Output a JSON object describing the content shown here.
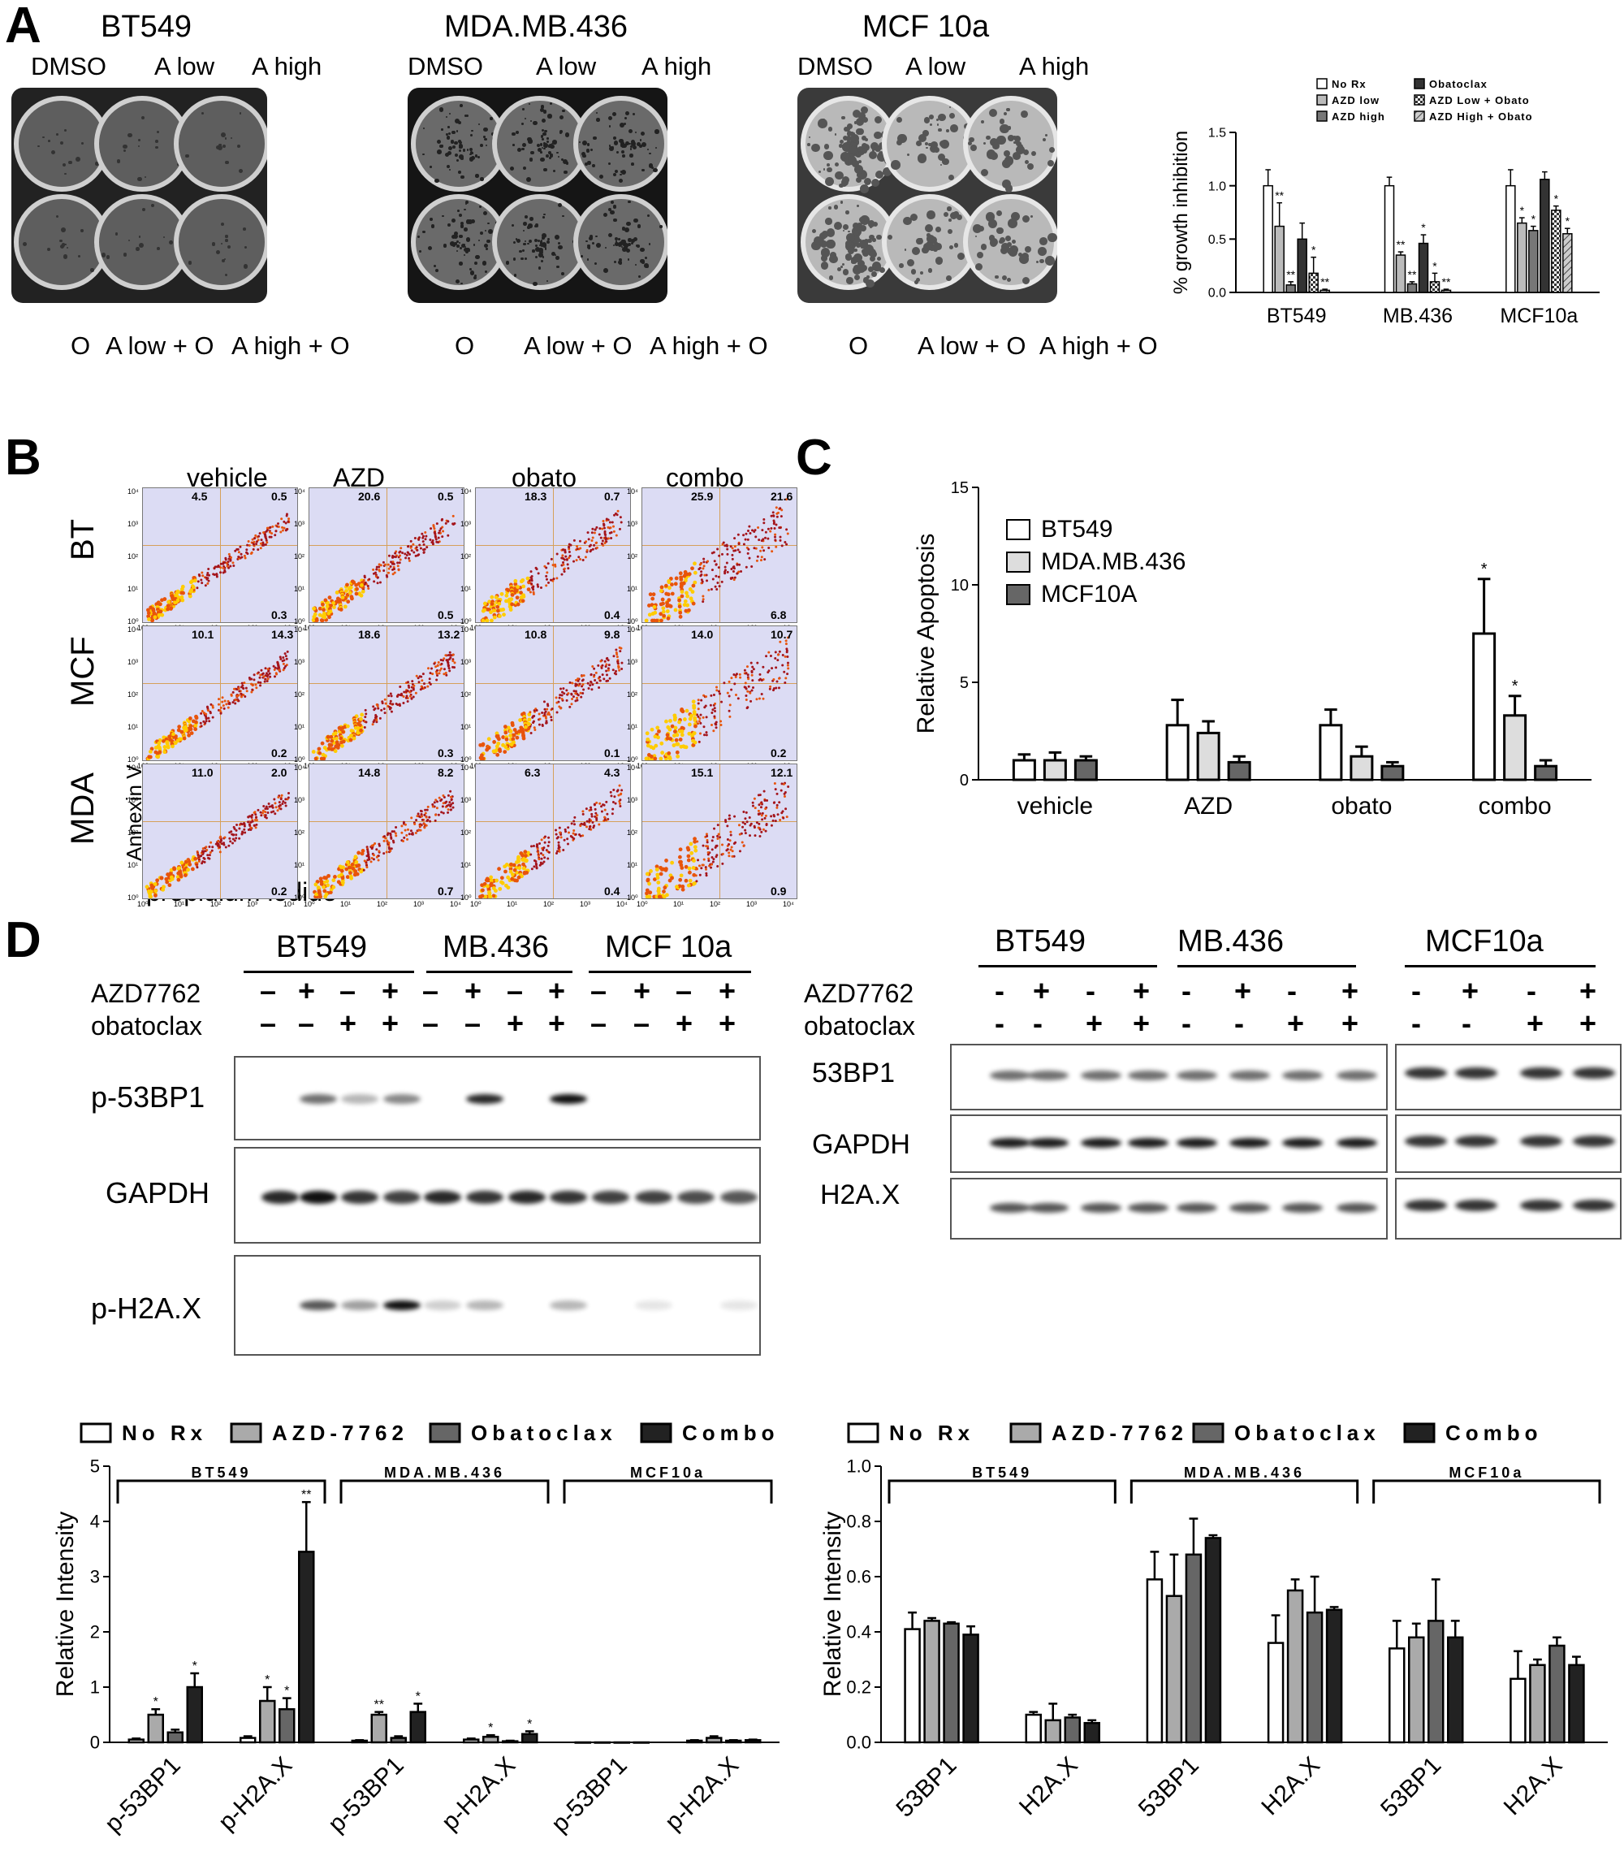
{
  "panels": {
    "A": "A",
    "B": "B",
    "C": "C",
    "D": "D"
  },
  "panelA": {
    "plates": [
      {
        "title": "BT549",
        "top_labels": [
          "DMSO",
          "A low",
          "A high"
        ],
        "bottom_labels": [
          "O",
          "A low + O",
          "A high + O"
        ]
      },
      {
        "title": "MDA.MB.436",
        "top_labels": [
          "DMSO",
          "A low",
          "A high"
        ],
        "bottom_labels": [
          "O",
          "A low + O",
          "A high + O"
        ]
      },
      {
        "title": "MCF 10a",
        "top_labels": [
          "DMSO",
          "A low",
          "A high"
        ],
        "bottom_labels": [
          "O",
          "A low + O",
          "A high + O"
        ]
      }
    ]
  },
  "panelB": {
    "columns": [
      "vehicle",
      "AZD",
      "obato",
      "combo"
    ],
    "rows": [
      "BT",
      "MCF",
      "MDA"
    ],
    "ylabel": "Annexin V",
    "xlabel": "propidium iodide",
    "tick_labels": [
      "10⁰",
      "10¹",
      "10²",
      "10³",
      "10⁴"
    ],
    "quadrant_values": [
      [
        [
          "4.5",
          "0.5",
          "0.3"
        ],
        [
          "20.6",
          "0.5",
          "0.5"
        ],
        [
          "18.3",
          "0.7",
          "0.4"
        ],
        [
          "25.9",
          "21.6",
          "6.8"
        ]
      ],
      [
        [
          "10.1",
          "14.3",
          "0.2"
        ],
        [
          "18.6",
          "13.2",
          "0.3"
        ],
        [
          "10.8",
          "9.8",
          "0.1"
        ],
        [
          "14.0",
          "10.7",
          "0.2"
        ]
      ],
      [
        [
          "11.0",
          "2.0",
          "0.2"
        ],
        [
          "14.8",
          "8.2",
          "0.7"
        ],
        [
          "6.3",
          "4.3",
          "0.4"
        ],
        [
          "15.1",
          "12.1",
          "0.9"
        ]
      ]
    ]
  },
  "panelD": {
    "left_blot": {
      "groups": [
        "BT549",
        "MB.436",
        "MCF 10a"
      ],
      "rows": [
        "AZD7762",
        "obatoclax"
      ],
      "azd": [
        "–",
        "+",
        "–",
        "+",
        "–",
        "+",
        "–",
        "+",
        "–",
        "+",
        "–",
        "+"
      ],
      "obato": [
        "–",
        "–",
        "+",
        "+",
        "–",
        "–",
        "+",
        "+",
        "–",
        "–",
        "+",
        "+"
      ],
      "bands": [
        "p-53BP1",
        "GAPDH",
        "p-H2A.X"
      ]
    },
    "right_blot": {
      "groups": [
        "BT549",
        "MB.436",
        "MCF10a"
      ],
      "rows": [
        "AZD7762",
        "obatoclax"
      ],
      "azd": [
        "-",
        "+",
        "-",
        "+",
        "-",
        "+",
        "-",
        "+",
        "-",
        "+",
        "-",
        "+"
      ],
      "obato": [
        "-",
        "-",
        "+",
        "+",
        "-",
        "-",
        "+",
        "+",
        "-",
        "-",
        "+",
        "+"
      ],
      "bands": [
        "53BP1",
        "GAPDH",
        "H2A.X"
      ]
    }
  },
  "chart_data": [
    {
      "type": "bar",
      "panel": "A",
      "ylabel": "% growth inhibition",
      "categories": [
        "BT549",
        "MB.436",
        "MCF10a"
      ],
      "ylim": [
        0,
        1.5
      ],
      "yticks": [
        "0.0",
        "0.5",
        "1.0",
        "1.5"
      ],
      "series": [
        {
          "name": "No Rx",
          "values": [
            1.0,
            1.0,
            1.0
          ],
          "err": [
            0.15,
            0.08,
            0.15
          ]
        },
        {
          "name": "AZD low",
          "values": [
            0.62,
            0.35,
            0.65
          ],
          "err": [
            0.22,
            0.03,
            0.05
          ]
        },
        {
          "name": "AZD high",
          "values": [
            0.07,
            0.08,
            0.58
          ],
          "err": [
            0.03,
            0.02,
            0.04
          ]
        },
        {
          "name": "Obatoclax",
          "values": [
            0.5,
            0.46,
            1.06
          ],
          "err": [
            0.15,
            0.08,
            0.07
          ]
        },
        {
          "name": "AZD Low + Obato",
          "values": [
            0.18,
            0.1,
            0.77
          ],
          "err": [
            0.15,
            0.08,
            0.04
          ]
        },
        {
          "name": "AZD High + Obato",
          "values": [
            0.02,
            0.02,
            0.55
          ],
          "err": [
            0.01,
            0.01,
            0.05
          ]
        }
      ],
      "annotations": [
        [
          "",
          "**",
          "**",
          "",
          "*",
          "**"
        ],
        [
          "",
          "**",
          "**",
          "*",
          "*",
          "**"
        ],
        [
          "",
          "*",
          "*",
          "",
          "*",
          "*"
        ]
      ]
    },
    {
      "type": "bar",
      "panel": "C",
      "ylabel": "Relative Apoptosis",
      "categories": [
        "vehicle",
        "AZD",
        "obato",
        "combo"
      ],
      "ylim": [
        0,
        15
      ],
      "yticks": [
        "0",
        "5",
        "10",
        "15"
      ],
      "series": [
        {
          "name": "BT549",
          "values": [
            1.0,
            2.8,
            2.8,
            7.5
          ],
          "err": [
            0.3,
            1.3,
            0.8,
            2.8
          ]
        },
        {
          "name": "MDA.MB.436",
          "values": [
            1.0,
            2.4,
            1.2,
            3.3
          ],
          "err": [
            0.4,
            0.6,
            0.5,
            1.0
          ]
        },
        {
          "name": "MCF10A",
          "values": [
            1.0,
            0.9,
            0.7,
            0.7
          ],
          "err": [
            0.2,
            0.3,
            0.2,
            0.3
          ]
        }
      ],
      "annotations": [
        [
          "",
          "",
          "",
          ""
        ],
        [
          "",
          "",
          "",
          ""
        ],
        [
          "",
          "",
          "",
          ""
        ]
      ],
      "combo_stars": [
        "*",
        "*"
      ]
    },
    {
      "type": "bar",
      "panel": "D-left",
      "ylabel": "Relative Intensity",
      "legend": [
        "No Rx",
        "AZD-7762",
        "Obatoclax",
        "Combo"
      ],
      "groups": [
        "BT549",
        "MDA.MB.436",
        "MCF10a"
      ],
      "categories": [
        "p-53BP1",
        "p-H2A.X",
        "p-53BP1",
        "p-H2A.X",
        "p-53BP1",
        "p-H2A.X"
      ],
      "ylim": [
        0,
        5
      ],
      "yticks": [
        "0",
        "1",
        "2",
        "3",
        "4",
        "5"
      ],
      "series": [
        {
          "name": "No Rx",
          "values": [
            0.05,
            0.08,
            0.03,
            0.05,
            0.0,
            0.03
          ],
          "err": [
            0.02,
            0.03,
            0.01,
            0.02,
            0,
            0.01
          ]
        },
        {
          "name": "AZD-7762",
          "values": [
            0.5,
            0.75,
            0.5,
            0.1,
            0.0,
            0.08
          ],
          "err": [
            0.1,
            0.25,
            0.05,
            0.03,
            0,
            0.03
          ]
        },
        {
          "name": "Obatoclax",
          "values": [
            0.18,
            0.6,
            0.08,
            0.02,
            0.0,
            0.03
          ],
          "err": [
            0.05,
            0.2,
            0.03,
            0.01,
            0,
            0.01
          ]
        },
        {
          "name": "Combo",
          "values": [
            1.0,
            3.45,
            0.55,
            0.15,
            0.0,
            0.04
          ],
          "err": [
            0.25,
            0.9,
            0.15,
            0.05,
            0,
            0.01
          ]
        }
      ],
      "annotations": [
        [
          "",
          "",
          "",
          "",
          "",
          ""
        ],
        [
          "*",
          "*",
          "**",
          "*",
          "",
          ""
        ],
        [
          "",
          "*",
          "",
          "",
          "",
          ""
        ],
        [
          "*",
          "**",
          "*",
          "*",
          "",
          ""
        ]
      ]
    },
    {
      "type": "bar",
      "panel": "D-right",
      "ylabel": "Relative Intensity",
      "legend": [
        "No Rx",
        "AZD-7762",
        "Obatoclax",
        "Combo"
      ],
      "groups": [
        "BT549",
        "MDA.MB.436",
        "MCF10a"
      ],
      "categories": [
        "53BP1",
        "H2A.X",
        "53BP1",
        "H2A.X",
        "53BP1",
        "H2A.X"
      ],
      "ylim": [
        0,
        1.0
      ],
      "yticks": [
        "0.0",
        "0.2",
        "0.4",
        "0.6",
        "0.8",
        "1.0"
      ],
      "series": [
        {
          "name": "No Rx",
          "values": [
            0.41,
            0.1,
            0.59,
            0.36,
            0.34,
            0.23
          ],
          "err": [
            0.06,
            0.01,
            0.1,
            0.1,
            0.1,
            0.1
          ]
        },
        {
          "name": "AZD-7762",
          "values": [
            0.44,
            0.08,
            0.53,
            0.55,
            0.38,
            0.28
          ],
          "err": [
            0.01,
            0.06,
            0.15,
            0.04,
            0.05,
            0.02
          ]
        },
        {
          "name": "Obatoclax",
          "values": [
            0.43,
            0.09,
            0.68,
            0.47,
            0.44,
            0.35
          ],
          "err": [
            0.005,
            0.01,
            0.13,
            0.13,
            0.15,
            0.03
          ]
        },
        {
          "name": "Combo",
          "values": [
            0.39,
            0.07,
            0.74,
            0.48,
            0.38,
            0.28
          ],
          "err": [
            0.03,
            0.01,
            0.01,
            0.01,
            0.06,
            0.03
          ]
        }
      ]
    }
  ]
}
